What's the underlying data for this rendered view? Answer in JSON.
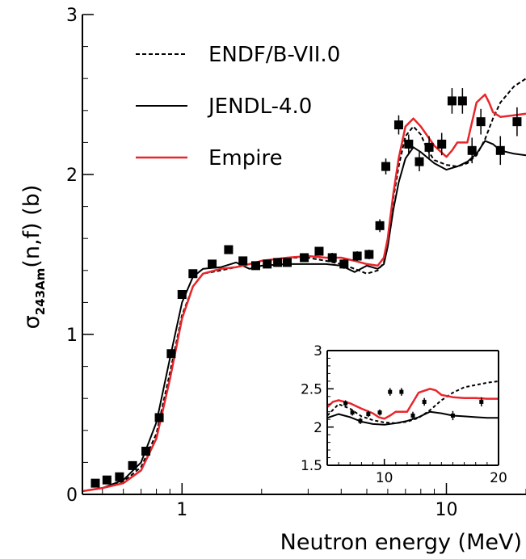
{
  "chart_data": [
    {
      "type": "line",
      "xscale": "log",
      "xlim": [
        0.42,
        20
      ],
      "ylim": [
        0,
        3
      ],
      "xticks": [
        {
          "v": 1,
          "label": "1"
        },
        {
          "v": 10,
          "label": "10"
        }
      ],
      "yticks": [
        {
          "v": 0,
          "label": "0"
        },
        {
          "v": 1,
          "label": "1"
        },
        {
          "v": 2,
          "label": "2"
        },
        {
          "v": 3,
          "label": "3"
        }
      ],
      "xlabel": "Neutron energy (MeV)",
      "ylabel": {
        "prefix": "σ",
        "sub": "243Am",
        "suffix": "(n,f) (b)"
      },
      "legend": {
        "position": "top-left"
      },
      "series": [
        {
          "name": "ENDF/B-VII.0",
          "color": "#000000",
          "dash": "dotted",
          "x": [
            0.42,
            0.5,
            0.6,
            0.7,
            0.8,
            0.9,
            1.0,
            1.1,
            1.2,
            1.4,
            1.7,
            2.0,
            2.5,
            3.0,
            3.5,
            4.0,
            4.5,
            5.0,
            5.5,
            5.8,
            6.0,
            6.3,
            6.6,
            7.0,
            7.5,
            8.0,
            8.5,
            9.0,
            10.0,
            11.0,
            12.0,
            13.0,
            14.0,
            15.0,
            16.0,
            18.0,
            20.0
          ],
          "y": [
            0.02,
            0.04,
            0.08,
            0.17,
            0.38,
            0.76,
            1.12,
            1.3,
            1.38,
            1.4,
            1.43,
            1.46,
            1.48,
            1.48,
            1.46,
            1.44,
            1.41,
            1.38,
            1.4,
            1.45,
            1.58,
            1.85,
            2.05,
            2.24,
            2.3,
            2.25,
            2.15,
            2.09,
            2.06,
            2.05,
            2.07,
            2.12,
            2.22,
            2.35,
            2.45,
            2.55,
            2.6
          ]
        },
        {
          "name": "JENDL-4.0",
          "color": "#000000",
          "dash": "solid",
          "x": [
            0.42,
            0.5,
            0.6,
            0.7,
            0.8,
            0.9,
            1.0,
            1.1,
            1.2,
            1.4,
            1.6,
            1.8,
            2.0,
            2.5,
            3.0,
            3.5,
            4.0,
            4.5,
            5.0,
            5.5,
            5.8,
            6.0,
            6.3,
            6.6,
            7.0,
            7.5,
            8.0,
            9.0,
            10.0,
            11.0,
            12.0,
            13.0,
            14.0,
            15.0,
            16.0,
            18.0,
            20.0
          ],
          "y": [
            0.02,
            0.04,
            0.09,
            0.2,
            0.45,
            0.85,
            1.2,
            1.36,
            1.41,
            1.42,
            1.45,
            1.41,
            1.43,
            1.44,
            1.44,
            1.44,
            1.43,
            1.39,
            1.43,
            1.41,
            1.44,
            1.55,
            1.78,
            1.95,
            2.1,
            2.17,
            2.14,
            2.07,
            2.03,
            2.05,
            2.08,
            2.13,
            2.21,
            2.19,
            2.15,
            2.13,
            2.12
          ]
        },
        {
          "name": "Empire",
          "color": "#e8262b",
          "dash": "solid",
          "x": [
            0.42,
            0.5,
            0.6,
            0.7,
            0.8,
            0.9,
            1.0,
            1.1,
            1.2,
            1.4,
            1.6,
            1.8,
            2.0,
            2.5,
            3.0,
            3.5,
            4.0,
            4.5,
            5.0,
            5.5,
            5.8,
            6.0,
            6.3,
            6.6,
            7.0,
            7.5,
            8.0,
            9.0,
            10.0,
            10.5,
            11.0,
            12.0,
            13.0,
            14.0,
            14.5,
            15.0,
            16.0,
            18.0,
            20.0
          ],
          "y": [
            0.02,
            0.04,
            0.07,
            0.15,
            0.35,
            0.72,
            1.1,
            1.3,
            1.38,
            1.41,
            1.42,
            1.44,
            1.46,
            1.48,
            1.49,
            1.48,
            1.48,
            1.46,
            1.44,
            1.43,
            1.48,
            1.6,
            1.88,
            2.1,
            2.3,
            2.35,
            2.3,
            2.18,
            2.11,
            2.15,
            2.2,
            2.2,
            2.45,
            2.5,
            2.45,
            2.39,
            2.36,
            2.37,
            2.38
          ]
        }
      ],
      "experimental": {
        "x": [
          0.47,
          0.52,
          0.58,
          0.65,
          0.73,
          0.82,
          0.91,
          1.0,
          1.1,
          1.3,
          1.5,
          1.7,
          1.9,
          2.1,
          2.3,
          2.5,
          2.9,
          3.3,
          3.7,
          4.1,
          4.6,
          5.1,
          5.6,
          5.9,
          6.6,
          7.2,
          7.9,
          8.6,
          9.6,
          10.5,
          11.5,
          12.5,
          13.5,
          16.0,
          18.5
        ],
        "y": [
          0.07,
          0.09,
          0.11,
          0.18,
          0.27,
          0.48,
          0.88,
          1.25,
          1.38,
          1.44,
          1.53,
          1.46,
          1.43,
          1.44,
          1.45,
          1.45,
          1.48,
          1.52,
          1.48,
          1.44,
          1.49,
          1.5,
          1.68,
          2.05,
          2.31,
          2.19,
          2.08,
          2.17,
          2.19,
          2.46,
          2.46,
          2.15,
          2.33,
          2.15,
          2.33
        ],
        "err": [
          0.01,
          0.01,
          0.01,
          0.01,
          0.01,
          0.01,
          0.02,
          0.02,
          0.02,
          0.02,
          0.02,
          0.02,
          0.02,
          0.02,
          0.02,
          0.02,
          0.02,
          0.02,
          0.03,
          0.03,
          0.03,
          0.03,
          0.04,
          0.05,
          0.06,
          0.06,
          0.06,
          0.07,
          0.07,
          0.08,
          0.08,
          0.08,
          0.08,
          0.09,
          0.09
        ]
      }
    },
    {
      "type": "line",
      "role": "inset",
      "xscale": "linear",
      "xlim": [
        5,
        20
      ],
      "ylim": [
        1.5,
        3
      ],
      "xticks": [
        {
          "v": 10,
          "label": "10"
        },
        {
          "v": 20,
          "label": "20"
        }
      ],
      "yticks": [
        {
          "v": 1.5,
          "label": "1.5"
        },
        {
          "v": 2,
          "label": "2"
        },
        {
          "v": 2.5,
          "label": "2.5"
        },
        {
          "v": 3,
          "label": "3"
        }
      ],
      "series": [
        {
          "name": "ENDF/B-VII.0",
          "color": "#000000",
          "dash": "dotted",
          "x": [
            5,
            6,
            7,
            8,
            9,
            10,
            11,
            12,
            13,
            14,
            15,
            16,
            17,
            18,
            19,
            20
          ],
          "y": [
            2.15,
            2.3,
            2.24,
            2.14,
            2.09,
            2.06,
            2.05,
            2.07,
            2.12,
            2.22,
            2.35,
            2.45,
            2.52,
            2.55,
            2.58,
            2.6
          ]
        },
        {
          "name": "JENDL-4.0",
          "color": "#000000",
          "dash": "solid",
          "x": [
            5,
            6,
            7,
            8,
            9,
            10,
            11,
            12,
            13,
            14,
            15,
            16,
            17,
            18,
            19,
            20
          ],
          "y": [
            2.12,
            2.17,
            2.13,
            2.07,
            2.04,
            2.03,
            2.05,
            2.08,
            2.13,
            2.2,
            2.18,
            2.15,
            2.14,
            2.13,
            2.12,
            2.12
          ]
        },
        {
          "name": "Empire",
          "color": "#e8262b",
          "dash": "solid",
          "x": [
            5,
            5.5,
            6,
            7,
            8,
            9,
            9.5,
            10,
            10.5,
            11,
            12,
            13,
            14,
            14.5,
            15,
            16,
            17,
            18,
            19,
            20
          ],
          "y": [
            2.26,
            2.33,
            2.35,
            2.31,
            2.24,
            2.18,
            2.13,
            2.11,
            2.15,
            2.2,
            2.2,
            2.45,
            2.5,
            2.48,
            2.42,
            2.39,
            2.38,
            2.38,
            2.37,
            2.37
          ]
        }
      ],
      "experimental": {
        "x": [
          6.6,
          7.2,
          7.9,
          8.6,
          9.6,
          10.5,
          11.5,
          12.5,
          13.5,
          16.0,
          18.5
        ],
        "y": [
          2.31,
          2.19,
          2.08,
          2.17,
          2.19,
          2.46,
          2.46,
          2.15,
          2.33,
          2.15,
          2.33
        ],
        "err": [
          0.04,
          0.04,
          0.04,
          0.04,
          0.04,
          0.05,
          0.05,
          0.05,
          0.05,
          0.06,
          0.06
        ]
      }
    }
  ]
}
